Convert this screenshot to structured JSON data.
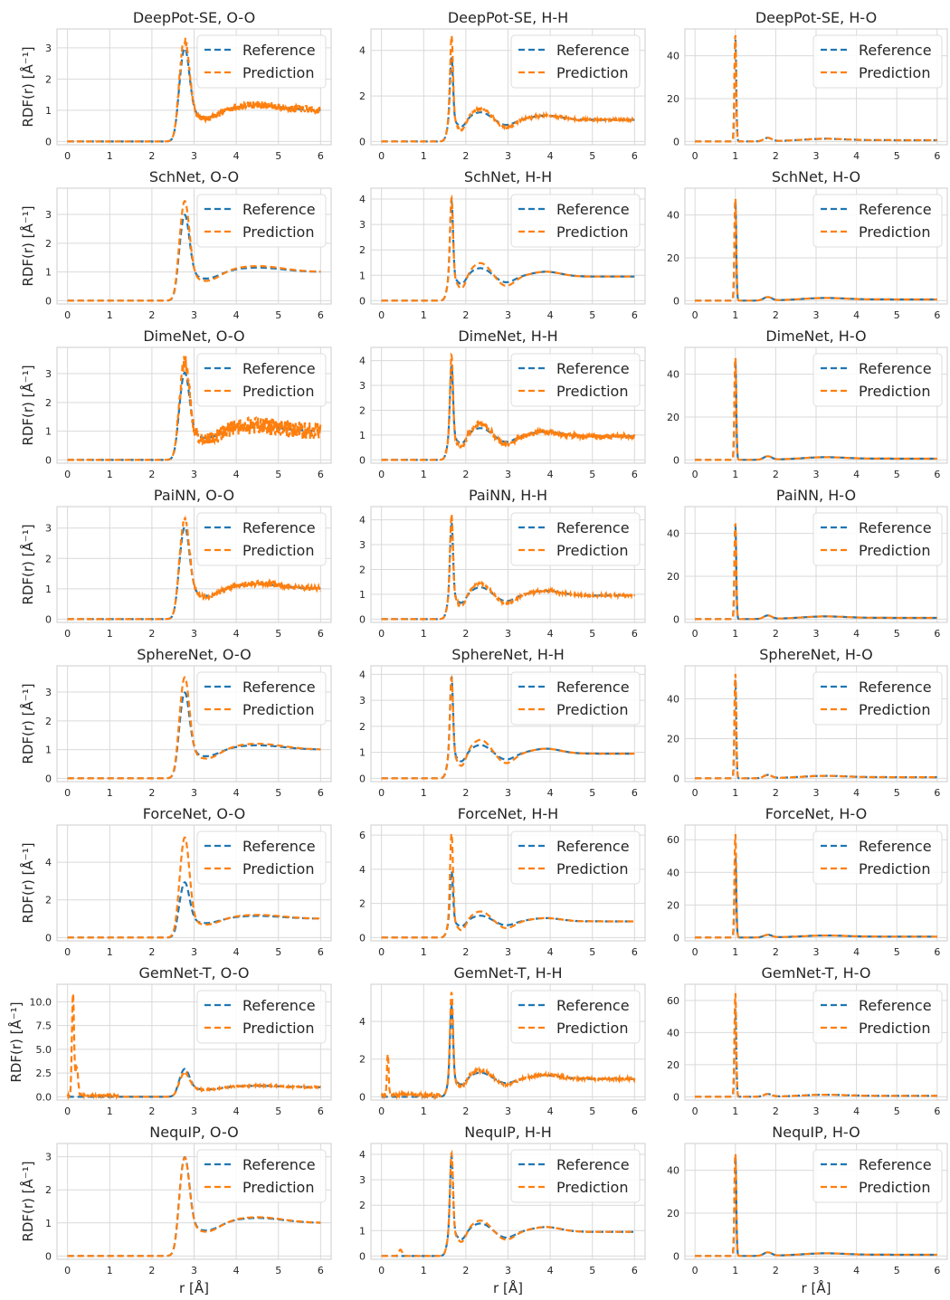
{
  "colors": {
    "reference": "#1f77b4",
    "prediction": "#ff7f0e",
    "grid": "#d9d9d9",
    "frame": "#cccccc"
  },
  "common": {
    "ylabel": "RDF(r) [Å⁻¹]",
    "xlabel": "r [Å]",
    "legend": {
      "reference": "Reference",
      "prediction": "Prediction",
      "placement": "top-right"
    },
    "x_ticks": [
      0,
      1,
      2,
      3,
      4,
      5,
      6
    ],
    "xlim": [
      0,
      6
    ]
  },
  "chart_data": [
    {
      "type": "line",
      "title": "DeepPot-SE, O-O",
      "pair": "O-O",
      "ylim": [
        0,
        3.5
      ],
      "yticks": [
        "0",
        "1",
        "2",
        "3"
      ],
      "yvals": [
        0,
        1,
        2,
        3
      ],
      "peak_pred": 3.35,
      "peak_ref": 3.05,
      "noise": 0.12,
      "osc": 0.15,
      "gem": false
    },
    {
      "type": "line",
      "title": "DeepPot-SE, H-H",
      "pair": "H-H",
      "ylim": [
        0,
        4.8
      ],
      "yticks": [
        "0",
        "2",
        "4"
      ],
      "yvals": [
        0,
        2,
        4
      ],
      "peak_pred": 4.6,
      "peak_ref": 3.7,
      "noise": 0.06,
      "osc": 0.5,
      "gem": false
    },
    {
      "type": "line",
      "title": "DeepPot-SE, H-O",
      "pair": "H-O",
      "ylim": [
        0,
        51
      ],
      "yticks": [
        "0",
        "20",
        "40"
      ],
      "yvals": [
        0,
        20,
        40
      ],
      "peak_pred": 50,
      "peak_ref": 48,
      "noise": 0,
      "gem": false
    },
    {
      "type": "line",
      "title": "SchNet, O-O",
      "pair": "O-O",
      "ylim": [
        0,
        3.8
      ],
      "yticks": [
        "0",
        "1",
        "2",
        "3"
      ],
      "yvals": [
        0,
        1,
        2,
        3
      ],
      "peak_pred": 3.55,
      "peak_ref": 3.05,
      "noise": 0,
      "osc": 0.35,
      "gem": false
    },
    {
      "type": "line",
      "title": "SchNet, H-H",
      "pair": "H-H",
      "ylim": [
        0,
        4.3
      ],
      "yticks": [
        "0",
        "1",
        "2",
        "3",
        "4"
      ],
      "yvals": [
        0,
        1,
        2,
        3,
        4
      ],
      "peak_pred": 4.05,
      "peak_ref": 3.9,
      "noise": 0,
      "osc": 0.6,
      "gem": false
    },
    {
      "type": "line",
      "title": "SchNet, H-O",
      "pair": "H-O",
      "ylim": [
        0,
        51
      ],
      "yticks": [
        "0",
        "20",
        "40"
      ],
      "yvals": [
        0,
        20,
        40
      ],
      "peak_pred": 48,
      "peak_ref": 47,
      "noise": 0,
      "gem": false
    },
    {
      "type": "line",
      "title": "DimeNet, O-O",
      "pair": "O-O",
      "ylim": [
        0,
        3.8
      ],
      "yticks": [
        "0",
        "1",
        "2",
        "3"
      ],
      "yvals": [
        0,
        1,
        2,
        3
      ],
      "peak_pred": 3.55,
      "peak_ref": 3.1,
      "noise": 0.3,
      "osc": 0.2,
      "gem": false
    },
    {
      "type": "line",
      "title": "DimeNet, H-H",
      "pair": "H-H",
      "ylim": [
        0,
        4.4
      ],
      "yticks": [
        "0",
        "1",
        "2",
        "3",
        "4"
      ],
      "yvals": [
        0,
        1,
        2,
        3,
        4
      ],
      "peak_pred": 4.2,
      "peak_ref": 3.8,
      "noise": 0.12,
      "osc": 0.5,
      "gem": false
    },
    {
      "type": "line",
      "title": "DimeNet, H-O",
      "pair": "H-O",
      "ylim": [
        0,
        51
      ],
      "yticks": [
        "0",
        "20",
        "40"
      ],
      "yvals": [
        0,
        20,
        40
      ],
      "peak_pred": 48,
      "peak_ref": 47,
      "noise": 0,
      "gem": false
    },
    {
      "type": "line",
      "title": "PaiNN, O-O",
      "pair": "O-O",
      "ylim": [
        0,
        3.6
      ],
      "yticks": [
        "0",
        "1",
        "2",
        "3"
      ],
      "yvals": [
        0,
        1,
        2,
        3
      ],
      "peak_pred": 3.35,
      "peak_ref": 3.1,
      "noise": 0.09,
      "osc": 0.15,
      "gem": false
    },
    {
      "type": "line",
      "title": "PaiNN, H-H",
      "pair": "H-H",
      "ylim": [
        0,
        4.4
      ],
      "yticks": [
        "0",
        "1",
        "2",
        "3",
        "4"
      ],
      "yvals": [
        0,
        1,
        2,
        3,
        4
      ],
      "peak_pred": 4.2,
      "peak_ref": 3.9,
      "noise": 0.05,
      "osc": 0.45,
      "gem": false
    },
    {
      "type": "line",
      "title": "PaiNN, H-O",
      "pair": "H-O",
      "ylim": [
        0,
        51
      ],
      "yticks": [
        "0",
        "20",
        "40"
      ],
      "yvals": [
        0,
        20,
        40
      ],
      "peak_pred": 45,
      "peak_ref": 44,
      "noise": 0,
      "gem": false
    },
    {
      "type": "line",
      "title": "SphereNet, O-O",
      "pair": "O-O",
      "ylim": [
        0,
        3.8
      ],
      "yticks": [
        "0",
        "1",
        "2",
        "3"
      ],
      "yvals": [
        0,
        1,
        2,
        3
      ],
      "peak_pred": 3.6,
      "peak_ref": 3.05,
      "noise": 0,
      "osc": 0.35,
      "gem": false
    },
    {
      "type": "line",
      "title": "SphereNet, H-H",
      "pair": "H-H",
      "ylim": [
        0,
        4.2
      ],
      "yticks": [
        "0",
        "1",
        "2",
        "3",
        "4"
      ],
      "yvals": [
        0,
        1,
        2,
        3,
        4
      ],
      "peak_pred": 3.85,
      "peak_ref": 3.9,
      "noise": 0,
      "osc": 0.6,
      "gem": false
    },
    {
      "type": "line",
      "title": "SphereNet, H-O",
      "pair": "H-O",
      "ylim": [
        0,
        55
      ],
      "yticks": [
        "0",
        "20",
        "40"
      ],
      "yvals": [
        0,
        20,
        40
      ],
      "peak_pred": 53,
      "peak_ref": 50,
      "noise": 0,
      "gem": false
    },
    {
      "type": "line",
      "title": "ForceNet, O-O",
      "pair": "O-O",
      "ylim": [
        0,
        5.8
      ],
      "yticks": [
        "0",
        "2",
        "4"
      ],
      "yvals": [
        0,
        2,
        4
      ],
      "peak_pred": 5.4,
      "peak_ref": 3.0,
      "noise": 0,
      "osc": 0.35,
      "gem": false
    },
    {
      "type": "line",
      "title": "ForceNet, H-H",
      "pair": "H-H",
      "ylim": [
        0,
        6.4
      ],
      "yticks": [
        "0",
        "2",
        "4",
        "6"
      ],
      "yvals": [
        0,
        2,
        4,
        6
      ],
      "peak_pred": 6.1,
      "peak_ref": 3.9,
      "noise": 0,
      "osc": 0.75,
      "gem": false
    },
    {
      "type": "line",
      "title": "ForceNet, H-O",
      "pair": "H-O",
      "ylim": [
        0,
        67
      ],
      "yticks": [
        "0",
        "20",
        "40",
        "60"
      ],
      "yvals": [
        0,
        20,
        40,
        60
      ],
      "peak_pred": 64,
      "peak_ref": 50,
      "noise": 0,
      "gem": false
    },
    {
      "type": "line",
      "title": "GemNet-T, O-O",
      "pair": "O-O",
      "ylim": [
        0,
        11.5
      ],
      "yticks": [
        "0.0",
        "2.5",
        "5.0",
        "7.5",
        "10.0"
      ],
      "yvals": [
        0,
        2.5,
        5,
        7.5,
        10
      ],
      "peak_pred": 2.6,
      "peak_ref": 3.0,
      "noise": 0.08,
      "osc": 0.1,
      "gem": true,
      "spike": 10.8
    },
    {
      "type": "line",
      "title": "GemNet-T, H-H",
      "pair": "H-H",
      "ylim": [
        0,
        5.8
      ],
      "yticks": [
        "0",
        "2",
        "4"
      ],
      "yvals": [
        0,
        2,
        4
      ],
      "peak_pred": 5.6,
      "peak_ref": 4.8,
      "noise": 0.08,
      "osc": 0.4,
      "gem": true,
      "spike": 2.2
    },
    {
      "type": "line",
      "title": "GemNet-T, H-O",
      "pair": "H-O",
      "ylim": [
        0,
        68
      ],
      "yticks": [
        "0",
        "20",
        "40",
        "60"
      ],
      "yvals": [
        0,
        20,
        40,
        60
      ],
      "peak_pred": 65,
      "peak_ref": 55,
      "noise": 0,
      "gem": false
    },
    {
      "type": "line",
      "title": "NequIP, O-O",
      "pair": "O-O",
      "ylim": [
        0,
        3.3
      ],
      "yticks": [
        "0",
        "1",
        "2",
        "3"
      ],
      "yvals": [
        0,
        1,
        2,
        3
      ],
      "peak_pred": 3.05,
      "peak_ref": 3.05,
      "noise": 0,
      "osc": 0.15,
      "gem": false
    },
    {
      "type": "line",
      "title": "NequIP, H-H",
      "pair": "H-H",
      "ylim": [
        0,
        4.3
      ],
      "yticks": [
        "0",
        "1",
        "2",
        "3",
        "4"
      ],
      "yvals": [
        0,
        1,
        2,
        3,
        4
      ],
      "peak_pred": 4.05,
      "peak_ref": 3.95,
      "noise": 0,
      "osc": 0.35,
      "gem": false,
      "small_bump": true
    },
    {
      "type": "line",
      "title": "NequIP, H-O",
      "pair": "H-O",
      "ylim": [
        0,
        51
      ],
      "yticks": [
        "0",
        "20",
        "40"
      ],
      "yvals": [
        0,
        20,
        40
      ],
      "peak_pred": 48,
      "peak_ref": 47,
      "noise": 0,
      "gem": false
    }
  ]
}
